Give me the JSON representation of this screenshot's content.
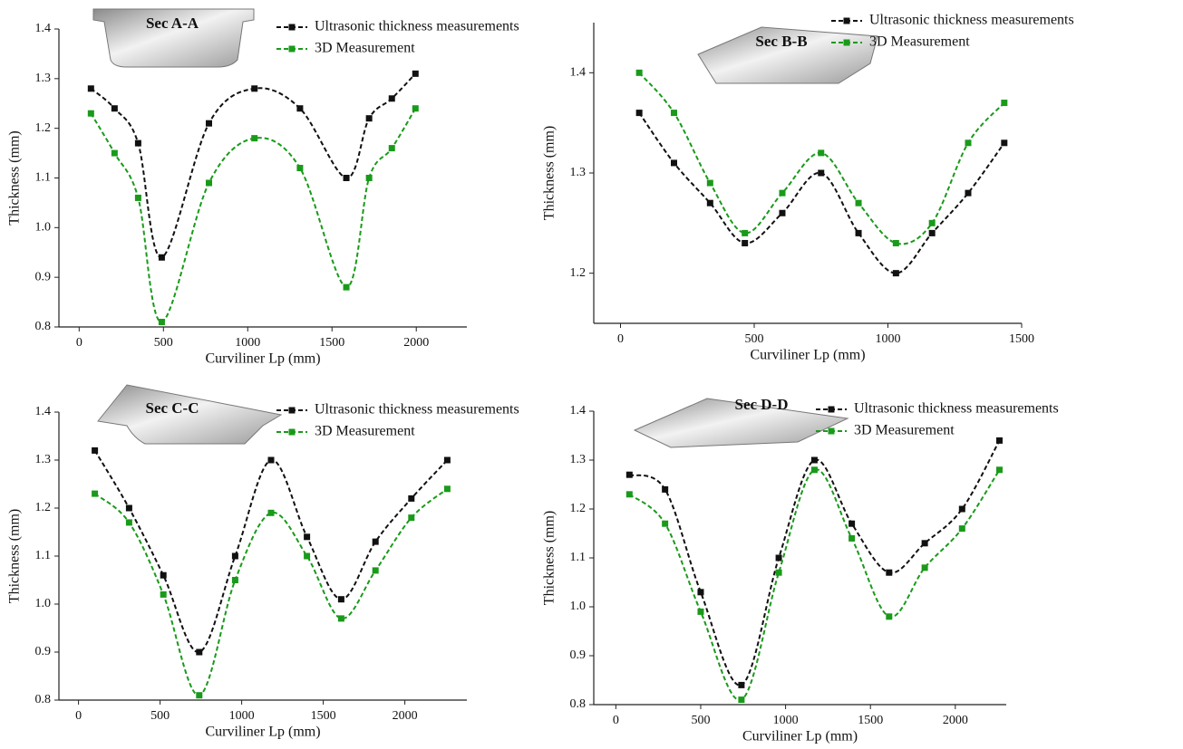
{
  "chart_data": [
    {
      "type": "line",
      "inset_label": "Sec A-A",
      "x_label": "Curviliner Lp (mm)",
      "y_label": "Thickness (mm)",
      "legend": "upper right",
      "x": [
        70,
        210,
        350,
        490,
        770,
        1040,
        1310,
        1585,
        1720,
        1855,
        1995
      ],
      "series": [
        {
          "name": "Ultrasonic thickness measurements",
          "color": "#111111",
          "values": [
            1.28,
            1.24,
            1.17,
            0.94,
            1.21,
            1.28,
            1.24,
            1.1,
            1.22,
            1.26,
            1.31
          ]
        },
        {
          "name": "3D Measurement",
          "color": "#1a9a1a",
          "values": [
            1.23,
            1.15,
            1.06,
            0.81,
            1.09,
            1.18,
            1.12,
            0.88,
            1.1,
            1.16,
            1.24
          ]
        }
      ],
      "xlim": [
        -120,
        2300
      ],
      "xticks": [
        0,
        500,
        1000,
        1500,
        2000
      ],
      "ylim": [
        0.8,
        1.4
      ],
      "yticks": [
        0.8,
        0.9,
        {
          "value": 1.0,
          "label": "1.0"
        },
        1.1,
        1.2,
        1.3,
        1.4
      ]
    },
    {
      "type": "line",
      "inset_label": "Sec B-B",
      "x_label": "Curviliner Lp (mm)",
      "y_label": "Thickness (mm)",
      "legend": "upper right",
      "x": [
        70,
        200,
        335,
        465,
        605,
        750,
        890,
        1030,
        1165,
        1300,
        1435
      ],
      "series": [
        {
          "name": "Ultrasonic thickness measurements",
          "color": "#111111",
          "values": [
            1.36,
            1.31,
            1.27,
            1.23,
            1.26,
            1.3,
            1.24,
            1.2,
            1.24,
            1.28,
            1.33
          ]
        },
        {
          "name": "3D Measurement",
          "color": "#1a9a1a",
          "values": [
            1.4,
            1.36,
            1.29,
            1.24,
            1.28,
            1.32,
            1.27,
            1.23,
            1.25,
            1.33,
            1.37
          ]
        }
      ],
      "xlim": [
        -100,
        1500
      ],
      "xticks": [
        0,
        500,
        1000,
        1500
      ],
      "ylim": [
        1.15,
        1.45
      ],
      "yticks": [
        1.2,
        1.3,
        1.4
      ]
    },
    {
      "type": "line",
      "inset_label": "Sec C-C",
      "x_label": "Curviliner Lp (mm)",
      "y_label": "Thickness (mm)",
      "legend": "upper right",
      "x": [
        100,
        310,
        520,
        740,
        960,
        1180,
        1400,
        1610,
        1820,
        2040,
        2260
      ],
      "series": [
        {
          "name": "Ultrasonic thickness measurements",
          "color": "#111111",
          "values": [
            1.32,
            1.2,
            1.06,
            0.9,
            1.1,
            1.3,
            1.14,
            1.01,
            1.13,
            1.22,
            1.3
          ]
        },
        {
          "name": "3D Measurement",
          "color": "#1a9a1a",
          "values": [
            1.23,
            1.17,
            1.02,
            0.81,
            1.05,
            1.19,
            1.1,
            0.97,
            1.07,
            1.18,
            1.24
          ]
        }
      ],
      "xlim": [
        -120,
        2380
      ],
      "xticks": [
        0,
        500,
        1000,
        1500,
        2000
      ],
      "ylim": [
        0.8,
        1.4
      ],
      "yticks": [
        0.8,
        0.9,
        {
          "value": 1.0,
          "label": "1.0"
        },
        1.1,
        1.2,
        1.3,
        1.4
      ]
    },
    {
      "type": "line",
      "inset_label": "Sec D-D",
      "x_label": "Curviliner Lp (mm)",
      "y_label": "Thickness (mm)",
      "legend": "upper right",
      "x": [
        80,
        290,
        500,
        740,
        960,
        1170,
        1390,
        1610,
        1820,
        2040,
        2260
      ],
      "series": [
        {
          "name": "Ultrasonic thickness measurements",
          "color": "#111111",
          "values": [
            1.27,
            1.24,
            1.03,
            0.84,
            1.1,
            1.3,
            1.17,
            1.07,
            1.13,
            1.2,
            1.34
          ]
        },
        {
          "name": "3D Measurement",
          "color": "#1a9a1a",
          "values": [
            1.23,
            1.17,
            0.99,
            0.81,
            1.07,
            1.28,
            1.14,
            0.98,
            1.08,
            1.16,
            1.28
          ]
        }
      ],
      "xlim": [
        -130,
        2300
      ],
      "xticks": [
        0,
        500,
        1000,
        1500,
        2000
      ],
      "ylim": [
        0.8,
        1.4
      ],
      "yticks": [
        0.8,
        0.9,
        {
          "value": 1.0,
          "label": "1.0"
        },
        1.1,
        1.2,
        1.3,
        1.4
      ]
    }
  ]
}
